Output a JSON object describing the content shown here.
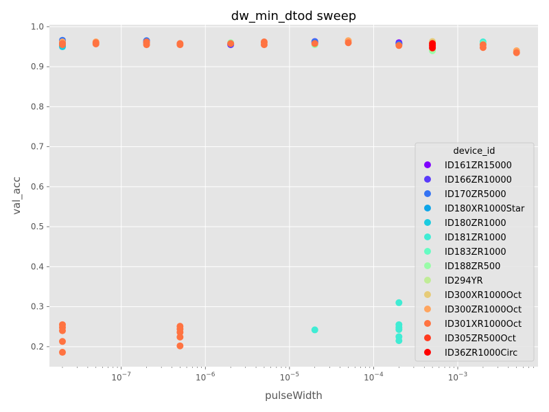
{
  "chart_data": {
    "type": "scatter",
    "title": "dw_min_dtod sweep",
    "xlabel": "pulseWidth",
    "ylabel": "val_acc",
    "xscale": "log",
    "xlim": [
      1.4e-08,
      0.009
    ],
    "ylim": [
      0.15,
      1.005
    ],
    "x_ticks": [
      {
        "value": 1e-07,
        "base": "10",
        "exp": "−7"
      },
      {
        "value": 1e-06,
        "base": "10",
        "exp": "−6"
      },
      {
        "value": 1e-05,
        "base": "10",
        "exp": "−5"
      },
      {
        "value": 0.0001,
        "base": "10",
        "exp": "−4"
      },
      {
        "value": 0.001,
        "base": "10",
        "exp": "−3"
      }
    ],
    "y_ticks": [
      0.2,
      0.3,
      0.4,
      0.5,
      0.6,
      0.7,
      0.8,
      0.9,
      1.0
    ],
    "y_tick_labels": [
      "0.2",
      "0.3",
      "0.4",
      "0.5",
      "0.6",
      "0.7",
      "0.8",
      "0.9",
      "1.0"
    ],
    "grid": true,
    "legend": {
      "title": "device_id",
      "placement": "center-right"
    },
    "series": [
      {
        "name": "ID161ZR15000",
        "color": "#8000ff",
        "points": [
          [
            2e-08,
            0.962
          ],
          [
            2e-07,
            0.96
          ],
          [
            2e-06,
            0.957
          ],
          [
            2e-05,
            0.96
          ],
          [
            0.0002,
            0.96
          ]
        ]
      },
      {
        "name": "ID166ZR10000",
        "color": "#5a3bfa",
        "points": [
          [
            2e-08,
            0.964
          ],
          [
            2e-07,
            0.962
          ],
          [
            2e-06,
            0.955
          ],
          [
            2e-05,
            0.963
          ],
          [
            0.0002,
            0.958
          ]
        ]
      },
      {
        "name": "ID170ZR5000",
        "color": "#3473f3",
        "points": [
          [
            2e-08,
            0.966
          ],
          [
            2e-07,
            0.965
          ],
          [
            2e-05,
            0.962
          ],
          [
            0.0002,
            0.956
          ]
        ]
      },
      {
        "name": "ID180XR1000Star",
        "color": "#0ea5e8",
        "points": [
          [
            2e-08,
            0.958
          ],
          [
            2e-08,
            0.952
          ]
        ]
      },
      {
        "name": "ID180ZR1000",
        "color": "#1bcbe0",
        "points": [
          [
            2e-08,
            0.95
          ]
        ]
      },
      {
        "name": "ID181ZR1000",
        "color": "#40ecd4",
        "points": [
          [
            2e-05,
            0.242
          ],
          [
            0.0002,
            0.31
          ],
          [
            0.0002,
            0.255
          ],
          [
            0.0002,
            0.248
          ],
          [
            0.0002,
            0.243
          ],
          [
            0.0002,
            0.225
          ],
          [
            0.0002,
            0.215
          ],
          [
            0.002,
            0.962
          ]
        ]
      },
      {
        "name": "ID183ZR1000",
        "color": "#66fcc3",
        "points": [
          [
            0.002,
            0.958
          ]
        ]
      },
      {
        "name": "ID188ZR500",
        "color": "#99fca8",
        "points": [
          [
            2e-06,
            0.96
          ],
          [
            2e-05,
            0.955
          ],
          [
            0.0005,
            0.94
          ]
        ]
      },
      {
        "name": "ID294YR",
        "color": "#c0ec97",
        "points": [
          [
            0.0005,
            0.96
          ],
          [
            0.0005,
            0.945
          ]
        ]
      },
      {
        "name": "ID300XR1000Oct",
        "color": "#e6cb78",
        "points": [
          [
            0.0005,
            0.963
          ]
        ]
      },
      {
        "name": "ID300ZR1000Oct",
        "color": "#ffa55f",
        "points": [
          [
            2e-08,
            0.962
          ],
          [
            5e-08,
            0.962
          ],
          [
            2e-07,
            0.958
          ],
          [
            5e-06,
            0.96
          ],
          [
            5e-05,
            0.965
          ],
          [
            0.005,
            0.94
          ]
        ]
      },
      {
        "name": "ID301XR1000Oct",
        "color": "#ff7341",
        "points": [
          [
            2e-08,
            0.958
          ],
          [
            2e-08,
            0.955
          ],
          [
            2e-08,
            0.255
          ],
          [
            2e-08,
            0.248
          ],
          [
            2e-08,
            0.24
          ],
          [
            2e-08,
            0.213
          ],
          [
            2e-08,
            0.186
          ],
          [
            5e-08,
            0.96
          ],
          [
            5e-08,
            0.957
          ],
          [
            2e-07,
            0.962
          ],
          [
            2e-07,
            0.955
          ],
          [
            5e-07,
            0.958
          ],
          [
            5e-07,
            0.955
          ],
          [
            5e-07,
            0.251
          ],
          [
            5e-07,
            0.244
          ],
          [
            5e-07,
            0.236
          ],
          [
            5e-07,
            0.224
          ],
          [
            5e-07,
            0.202
          ],
          [
            2e-06,
            0.958
          ],
          [
            5e-06,
            0.962
          ],
          [
            5e-06,
            0.955
          ],
          [
            2e-05,
            0.958
          ],
          [
            5e-05,
            0.96
          ],
          [
            0.0002,
            0.953
          ],
          [
            0.002,
            0.955
          ],
          [
            0.002,
            0.948
          ],
          [
            0.005,
            0.935
          ]
        ]
      },
      {
        "name": "ID305ZR500Oct",
        "color": "#ff3b20",
        "points": [
          [
            0.0005,
            0.955
          ]
        ]
      },
      {
        "name": "ID36ZR1000Circ",
        "color": "#ff0000",
        "points": [
          [
            0.0005,
            0.958
          ],
          [
            0.0005,
            0.952
          ],
          [
            0.0005,
            0.947
          ]
        ]
      }
    ]
  }
}
